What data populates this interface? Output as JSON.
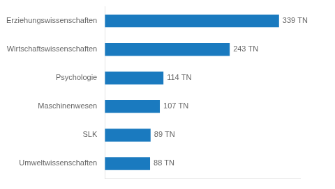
{
  "chart_data": {
    "type": "bar",
    "orientation": "horizontal",
    "categories": [
      "Erziehungswissenschaften",
      "Wirtschaftswissenschaften",
      "Psychologie",
      "Maschinenwesen",
      "SLK",
      "Umweltwissenschaften"
    ],
    "values": [
      339,
      243,
      114,
      107,
      89,
      88
    ],
    "value_labels": [
      "339 TN",
      "243 TN",
      "114 TN",
      "107 TN",
      "89 TN",
      "88 TN"
    ],
    "color": "#1a7abf",
    "xlim": [
      0,
      380
    ],
    "data_labels": true,
    "tick_labels": "y",
    "grid": false
  }
}
